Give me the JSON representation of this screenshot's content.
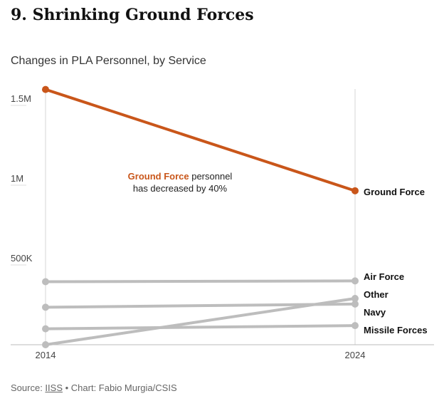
{
  "header": {
    "title": "9. Shrinking Ground Forces",
    "subtitle": "Changes in PLA Personnel, by Service"
  },
  "footer": {
    "source_prefix": "Source: ",
    "source_link": "IISS",
    "credit": " • Chart: Fabio Murgia/CSIS"
  },
  "chart_data": {
    "type": "line",
    "title": "Changes in PLA Personnel, by Service",
    "x": [
      "2014",
      "2024"
    ],
    "ylim": [
      0,
      1600000
    ],
    "yticks": [
      {
        "value": 500000,
        "label": "500K"
      },
      {
        "value": 1000000,
        "label": "1M"
      },
      {
        "value": 1500000,
        "label": "1.5M"
      }
    ],
    "series": [
      {
        "name": "Ground Force",
        "values": [
          1600000,
          965000
        ],
        "color": "#c9561a"
      },
      {
        "name": "Air Force",
        "values": [
          395000,
          400000
        ],
        "color": "#bdbdbd"
      },
      {
        "name": "Other",
        "values": [
          0,
          290000
        ],
        "color": "#bdbdbd"
      },
      {
        "name": "Navy",
        "values": [
          235000,
          255000
        ],
        "color": "#bdbdbd"
      },
      {
        "name": "Missile Forces",
        "values": [
          100000,
          120000
        ],
        "color": "#bdbdbd"
      }
    ],
    "annotation": {
      "highlight": "Ground Force",
      "text1": " personnel",
      "text2": "has decreased by 40%"
    }
  }
}
